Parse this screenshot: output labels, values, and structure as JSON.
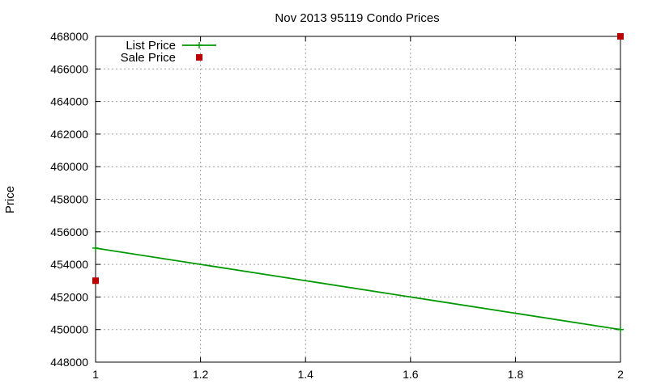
{
  "chart_data": {
    "type": "line",
    "title": "Nov 2013 95119 Condo Prices",
    "xlabel": "",
    "ylabel": "Price",
    "xlim": [
      1,
      2
    ],
    "ylim": [
      448000,
      468000
    ],
    "x_ticks": [
      1,
      1.2,
      1.4,
      1.6,
      1.8,
      2
    ],
    "x_tick_labels": [
      "1",
      "1.2",
      "1.4",
      "1.6",
      "1.8",
      "2"
    ],
    "y_ticks": [
      448000,
      450000,
      452000,
      454000,
      456000,
      458000,
      460000,
      462000,
      464000,
      466000,
      468000
    ],
    "y_tick_labels": [
      "448000",
      "450000",
      "452000",
      "454000",
      "456000",
      "458000",
      "460000",
      "462000",
      "464000",
      "466000",
      "468000"
    ],
    "grid": true,
    "legend_position": "top-left",
    "series": [
      {
        "name": "List Price",
        "style": "linespoints",
        "marker": "plus",
        "color": "#009900",
        "points": [
          {
            "x": 1,
            "y": 455000
          },
          {
            "x": 2,
            "y": 450000
          }
        ]
      },
      {
        "name": "Sale Price",
        "style": "points",
        "marker": "square",
        "color": "#bb0000",
        "points": [
          {
            "x": 1,
            "y": 453000
          },
          {
            "x": 2,
            "y": 468000
          }
        ]
      }
    ]
  }
}
